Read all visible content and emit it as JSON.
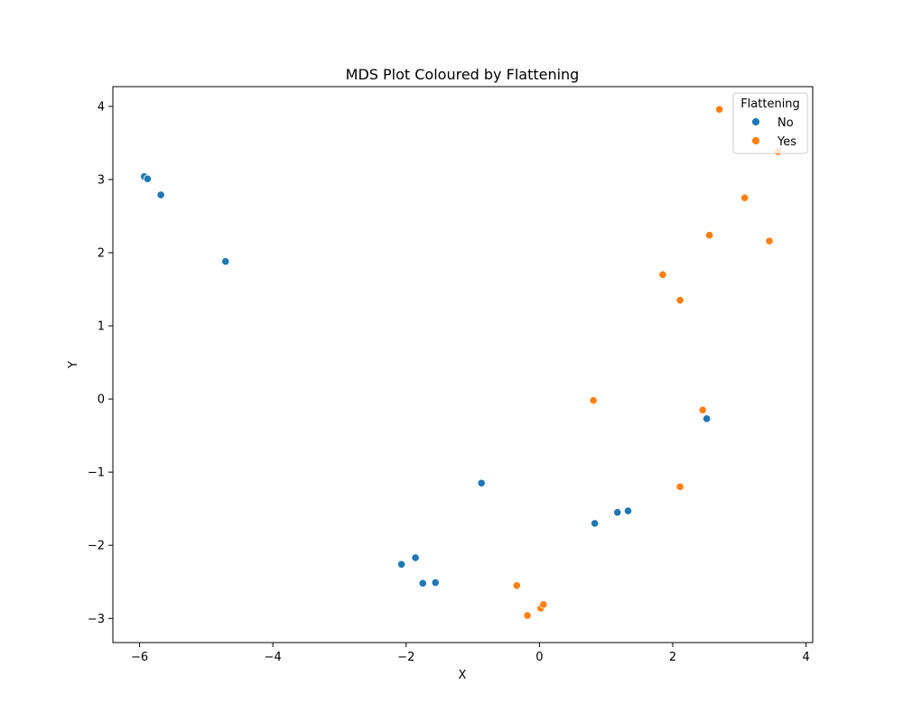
{
  "chart_data": {
    "type": "scatter",
    "title": "MDS Plot Coloured by Flattening",
    "xlabel": "X",
    "ylabel": "Y",
    "xlim": [
      -6.4,
      4.1
    ],
    "ylim": [
      -3.33,
      4.27
    ],
    "xticks": [
      -6,
      -4,
      -2,
      0,
      2,
      4
    ],
    "yticks": [
      -3,
      -2,
      -1,
      0,
      1,
      2,
      3,
      4
    ],
    "tick_labels_x": [
      "−6",
      "−4",
      "−2",
      "0",
      "2",
      "4"
    ],
    "tick_labels_y": [
      "−3",
      "−2",
      "−1",
      "0",
      "1",
      "2",
      "3",
      "4"
    ],
    "grid": false,
    "legend": {
      "title": "Flattening",
      "placement": "top-right"
    },
    "series": [
      {
        "name": "No",
        "color": "#1f77b4",
        "points": [
          {
            "x": -5.93,
            "y": 3.04
          },
          {
            "x": -5.88,
            "y": 3.01
          },
          {
            "x": -5.68,
            "y": 2.79
          },
          {
            "x": -4.71,
            "y": 1.88
          },
          {
            "x": -0.87,
            "y": -1.15
          },
          {
            "x": -2.07,
            "y": -2.26
          },
          {
            "x": -1.86,
            "y": -2.17
          },
          {
            "x": -1.75,
            "y": -2.52
          },
          {
            "x": -1.56,
            "y": -2.51
          },
          {
            "x": 0.83,
            "y": -1.7
          },
          {
            "x": 1.17,
            "y": -1.55
          },
          {
            "x": 1.33,
            "y": -1.53
          },
          {
            "x": 2.51,
            "y": -0.27
          }
        ]
      },
      {
        "name": "Yes",
        "color": "#ff7f0e",
        "points": [
          {
            "x": 2.7,
            "y": 3.96
          },
          {
            "x": 3.58,
            "y": 3.38
          },
          {
            "x": 3.08,
            "y": 2.75
          },
          {
            "x": 2.55,
            "y": 2.24
          },
          {
            "x": 3.45,
            "y": 2.16
          },
          {
            "x": 1.85,
            "y": 1.7
          },
          {
            "x": 2.11,
            "y": 1.35
          },
          {
            "x": 0.81,
            "y": -0.02
          },
          {
            "x": 2.45,
            "y": -0.15
          },
          {
            "x": 2.11,
            "y": -1.2
          },
          {
            "x": -0.34,
            "y": -2.55
          },
          {
            "x": -0.18,
            "y": -2.96
          },
          {
            "x": 0.02,
            "y": -2.86
          },
          {
            "x": 0.06,
            "y": -2.81
          }
        ]
      }
    ]
  }
}
